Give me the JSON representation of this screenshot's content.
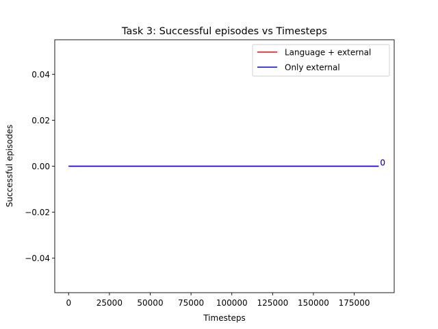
{
  "chart_data": {
    "type": "line",
    "title": "Task 3: Successful episodes vs Timesteps",
    "xlabel": "Timesteps",
    "ylabel": "Successful episodes",
    "xlim": [
      -8500,
      199500
    ],
    "ylim": [
      -0.055,
      0.055
    ],
    "x_ticks": [
      0,
      25000,
      50000,
      75000,
      100000,
      125000,
      150000,
      175000
    ],
    "x_tick_labels": [
      "0",
      "25000",
      "50000",
      "75000",
      "100000",
      "125000",
      "150000",
      "175000"
    ],
    "y_ticks": [
      -0.04,
      -0.02,
      0.0,
      0.02,
      0.04
    ],
    "y_tick_labels": [
      "−0.04",
      "−0.02",
      "0.00",
      "0.02",
      "0.04"
    ],
    "grid": false,
    "legend_position": "top-right",
    "series": [
      {
        "name": "Language + external",
        "color": "#ff0000",
        "x": [
          0,
          190000
        ],
        "y": [
          0,
          0
        ]
      },
      {
        "name": "Only external",
        "color": "#0000ff",
        "x": [
          0,
          190000
        ],
        "y": [
          0,
          0
        ]
      }
    ],
    "annotations": [
      {
        "text": "0",
        "x": 190000,
        "y": 0,
        "color": "#ff0000"
      },
      {
        "text": "0",
        "x": 190000,
        "y": 0,
        "color": "#0000ff"
      }
    ]
  }
}
